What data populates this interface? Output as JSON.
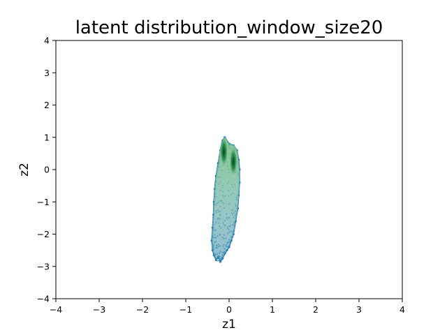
{
  "chart_data": {
    "type": "scatter",
    "title": "latent distribution_window_size20",
    "xlabel": "z1",
    "ylabel": "z2",
    "xlim": [
      -4,
      4
    ],
    "ylim": [
      -4,
      4
    ],
    "x_ticks": [
      "−4",
      "−3",
      "−2",
      "−1",
      "0",
      "1",
      "2",
      "3",
      "4"
    ],
    "y_ticks": [
      "−4",
      "−3",
      "−2",
      "−1",
      "0",
      "1",
      "2",
      "3",
      "4"
    ],
    "grid": false,
    "legend": "none",
    "series": [
      {
        "kind": "scatter",
        "color": "#1f77b4",
        "points": [
          [
            -0.3,
            -2.8
          ],
          [
            -0.25,
            -2.7
          ],
          [
            -0.2,
            -2.85
          ],
          [
            -0.15,
            -2.75
          ],
          [
            -0.1,
            -2.6
          ],
          [
            -0.05,
            -2.5
          ],
          [
            0.0,
            -2.4
          ],
          [
            0.05,
            -2.2
          ],
          [
            0.1,
            -2.0
          ],
          [
            0.15,
            -1.6
          ],
          [
            0.2,
            -1.2
          ],
          [
            0.22,
            -0.8
          ],
          [
            0.24,
            -0.4
          ],
          [
            0.24,
            0.0
          ],
          [
            0.22,
            0.3
          ],
          [
            0.18,
            0.6
          ],
          [
            0.1,
            0.75
          ],
          [
            0.0,
            0.8
          ],
          [
            -0.1,
            1.0
          ],
          [
            -0.15,
            0.9
          ],
          [
            -0.2,
            0.6
          ],
          [
            -0.25,
            0.2
          ],
          [
            -0.3,
            -0.2
          ],
          [
            -0.33,
            -0.6
          ],
          [
            -0.35,
            -1.0
          ],
          [
            -0.36,
            -1.4
          ],
          [
            -0.38,
            -1.8
          ],
          [
            -0.4,
            -2.2
          ],
          [
            -0.38,
            -2.5
          ],
          [
            -0.35,
            -2.65
          ]
        ]
      },
      {
        "kind": "density",
        "colormap": "Greens",
        "peaks": [
          {
            "x": -0.12,
            "y": 0.55
          },
          {
            "x": 0.1,
            "y": 0.25
          }
        ]
      }
    ]
  }
}
